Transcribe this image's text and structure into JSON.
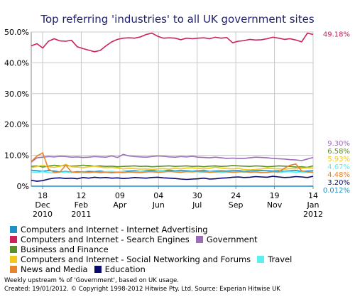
{
  "chart_data": {
    "type": "line",
    "title": "Top referring 'industries'  to all UK government sites",
    "ylim": [
      0,
      50
    ],
    "y_ticks": [
      "0%",
      "10.0%",
      "20.0%",
      "30.0%",
      "40.0%",
      "50.0%"
    ],
    "x_ticks": [
      {
        "day": "18",
        "month": "Dec",
        "year": "2010"
      },
      {
        "day": "12",
        "month": "Feb",
        "year": "2011"
      },
      {
        "day": "09",
        "month": "Apr",
        "year": ""
      },
      {
        "day": "04",
        "month": "Jun",
        "year": ""
      },
      {
        "day": "30",
        "month": "Jul",
        "year": ""
      },
      {
        "day": "24",
        "month": "Sep",
        "year": ""
      },
      {
        "day": "19",
        "month": "Nov",
        "year": ""
      },
      {
        "day": "14",
        "month": "Jan",
        "year": "2012"
      }
    ],
    "grid": true,
    "series": [
      {
        "name": "Computers and Internet - Internet Advertising",
        "color": "#1f8fc8",
        "end_label": "",
        "legend_row": 0,
        "values": [
          5.2,
          5.0,
          4.8,
          5.1,
          4.9,
          4.6,
          4.8,
          4.5,
          4.7,
          4.6,
          4.8,
          4.7,
          4.9,
          4.6,
          4.7,
          4.5,
          4.8,
          4.9,
          5.0,
          4.8,
          5.0,
          5.1,
          4.9,
          5.0,
          5.2,
          5.0,
          5.1,
          5.0,
          4.9,
          5.0,
          5.1,
          4.8,
          4.9,
          5.0,
          4.9,
          5.0,
          5.1,
          4.8,
          4.9,
          5.0,
          5.1,
          5.0,
          4.9,
          5.0,
          4.8,
          5.0,
          5.1,
          4.8,
          4.9,
          5.0
        ]
      },
      {
        "name": "Computers and Internet - Search Engines",
        "color": "#cc2257",
        "end_label": "49.18%",
        "legend_row": 1,
        "values": [
          45.5,
          46.2,
          44.8,
          47.0,
          47.8,
          47.1,
          47.0,
          47.3,
          45.2,
          44.6,
          44.1,
          43.6,
          44.0,
          45.5,
          46.8,
          47.6,
          48.0,
          48.1,
          48.0,
          48.4,
          49.2,
          49.6,
          48.6,
          48.0,
          48.1,
          48.0,
          47.5,
          48.0,
          47.8,
          48.0,
          48.1,
          47.8,
          48.3,
          48.0,
          48.2,
          46.5,
          47.0,
          47.2,
          47.6,
          47.4,
          47.5,
          47.8,
          48.3,
          48.0,
          47.6,
          47.8,
          47.4,
          46.8,
          49.6,
          49.2
        ]
      },
      {
        "name": "Government",
        "color": "#9b6fb5",
        "end_label": "9.30%",
        "legend_row": 1,
        "values": [
          7.8,
          9.2,
          9.4,
          9.6,
          9.5,
          9.7,
          9.6,
          9.4,
          9.5,
          9.3,
          9.4,
          9.6,
          9.5,
          9.4,
          9.8,
          9.3,
          10.3,
          9.8,
          9.6,
          9.5,
          9.4,
          9.6,
          9.8,
          9.7,
          9.5,
          9.4,
          9.6,
          9.5,
          9.7,
          9.4,
          9.3,
          9.2,
          9.4,
          9.2,
          9.0,
          9.1,
          9.0,
          9.0,
          9.2,
          9.4,
          9.3,
          9.2,
          9.0,
          8.9,
          8.8,
          8.6,
          8.5,
          8.3,
          8.8,
          9.3
        ]
      },
      {
        "name": "Business and Finance",
        "color": "#5a8f2a",
        "end_label": "6.58%",
        "legend_row": 2,
        "values": [
          6.4,
          6.6,
          6.2,
          6.5,
          6.8,
          6.6,
          6.7,
          6.5,
          6.6,
          6.8,
          6.7,
          6.5,
          6.6,
          6.4,
          6.5,
          6.3,
          6.4,
          6.5,
          6.6,
          6.4,
          6.5,
          6.3,
          6.4,
          6.5,
          6.6,
          6.4,
          6.5,
          6.6,
          6.4,
          6.5,
          6.3,
          6.5,
          6.6,
          6.4,
          6.5,
          6.7,
          6.6,
          6.5,
          6.4,
          6.6,
          6.5,
          6.3,
          6.4,
          6.6,
          6.5,
          6.4,
          6.2,
          6.3,
          6.1,
          6.58
        ]
      },
      {
        "name": "Computers and Internet - Social Networking and Forums",
        "color": "#f2c81e",
        "end_label": "5.93%",
        "legend_row": 3,
        "values": [
          6.0,
          6.4,
          6.8,
          6.3,
          6.1,
          6.4,
          7.1,
          6.3,
          6.2,
          6.0,
          6.3,
          6.5,
          6.2,
          6.0,
          6.1,
          5.9,
          5.6,
          5.8,
          5.7,
          5.5,
          5.6,
          5.4,
          5.6,
          5.7,
          5.5,
          5.8,
          5.6,
          5.9,
          6.0,
          5.8,
          5.6,
          5.8,
          6.2,
          5.9,
          5.7,
          5.6,
          5.8,
          5.4,
          5.3,
          5.4,
          5.6,
          5.8,
          5.7,
          5.6,
          5.5,
          5.7,
          5.6,
          5.8,
          6.0,
          5.93
        ]
      },
      {
        "name": "Travel",
        "color": "#5af0f0",
        "end_label": "4.67%",
        "legend_row": 3,
        "values": [
          4.6,
          4.5,
          4.7,
          4.4,
          4.3,
          4.5,
          4.6,
          4.4,
          4.5,
          4.3,
          4.4,
          4.6,
          4.5,
          4.7,
          4.8,
          4.6,
          4.7,
          4.5,
          4.6,
          4.8,
          4.7,
          4.6,
          4.8,
          4.9,
          4.7,
          4.8,
          4.6,
          4.7,
          4.8,
          4.6,
          4.5,
          4.7,
          4.6,
          4.4,
          4.5,
          4.6,
          4.7,
          4.5,
          4.6,
          4.7,
          4.5,
          4.4,
          4.6,
          4.5,
          4.6,
          4.7,
          4.5,
          4.6,
          4.5,
          4.67
        ]
      },
      {
        "name": "News and Media",
        "color": "#e8842c",
        "end_label": "4.48%",
        "legend_row": 4,
        "values": [
          8.0,
          9.8,
          10.8,
          5.5,
          4.5,
          4.6,
          6.8,
          4.6,
          4.5,
          4.7,
          4.5,
          4.6,
          4.4,
          4.5,
          4.3,
          4.5,
          4.4,
          4.6,
          4.5,
          4.4,
          4.6,
          4.7,
          4.5,
          4.6,
          4.8,
          4.6,
          4.5,
          4.7,
          4.6,
          4.8,
          4.7,
          4.5,
          4.6,
          4.8,
          4.7,
          4.5,
          4.6,
          4.7,
          4.5,
          4.6,
          4.4,
          4.5,
          4.7,
          4.6,
          5.8,
          6.8,
          7.2,
          5.0,
          4.6,
          4.48
        ]
      },
      {
        "name": "Education",
        "color": "#0a0a6e",
        "end_label": "3.20%",
        "legend_row": 4,
        "values": [
          1.9,
          1.6,
          1.8,
          2.3,
          2.6,
          2.7,
          2.5,
          2.6,
          2.4,
          2.8,
          2.6,
          2.9,
          2.7,
          2.8,
          2.6,
          2.7,
          2.5,
          2.6,
          2.8,
          2.7,
          2.6,
          2.8,
          2.9,
          2.7,
          2.6,
          2.5,
          2.3,
          2.2,
          2.3,
          2.4,
          2.6,
          2.3,
          2.4,
          2.6,
          2.7,
          2.9,
          3.0,
          2.8,
          2.9,
          3.1,
          3.0,
          2.9,
          3.2,
          3.0,
          2.8,
          2.9,
          3.1,
          3.0,
          2.8,
          3.2
        ]
      },
      {
        "name": "",
        "color": "#1f8fc8",
        "end_label": "0.012%",
        "legend_row": -1,
        "values": [
          0.01,
          0.01,
          0.01,
          0.01,
          0.01,
          0.01,
          0.01,
          0.01,
          0.01,
          0.01,
          0.01,
          0.01,
          0.01,
          0.01,
          0.01,
          0.01,
          0.01,
          0.01,
          0.01,
          0.01,
          0.01,
          0.01,
          0.01,
          0.01,
          0.01,
          0.01,
          0.01,
          0.01,
          0.01,
          0.01,
          0.01,
          0.01,
          0.01,
          0.01,
          0.01,
          0.01,
          0.01,
          0.01,
          0.01,
          0.01,
          0.01,
          0.01,
          0.01,
          0.01,
          0.01,
          0.01,
          0.01,
          0.01,
          0.01,
          0.012
        ]
      }
    ]
  },
  "footer": {
    "line1": "Weekly upstream % of 'Government', based on UK usage.",
    "line2": "Created: 19/01/2012. © Copyright 1998-2012 Hitwise Pty. Ltd.    Source: Experian Hitwise UK"
  }
}
